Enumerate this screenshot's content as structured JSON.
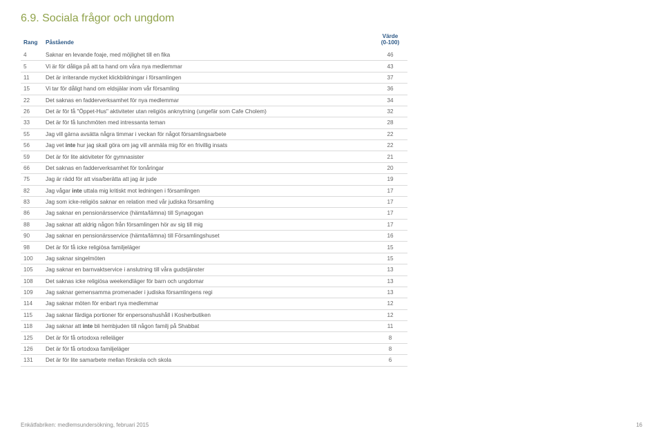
{
  "title": "6.9. Sociala frågor och ungdom",
  "columns": {
    "rang": "Rang",
    "pastaende": "Påstående",
    "varde": "Värde\n(0-100)"
  },
  "rows": [
    {
      "r": "4",
      "t": "Saknar en levande foaje, med möjlighet till en fika",
      "v": "46"
    },
    {
      "r": "5",
      "t": "Vi är för dåliga på att ta hand om våra nya medlemmar",
      "v": "43"
    },
    {
      "r": "11",
      "t": "Det är irriterande mycket klickbildningar i församlingen",
      "v": "37"
    },
    {
      "r": "15",
      "t": "Vi tar för dåligt hand om eldsjälar inom vår församling",
      "v": "36"
    },
    {
      "r": "22",
      "t": "Det saknas en fadderverksamhet för nya medlemmar",
      "v": "34"
    },
    {
      "r": "26",
      "t": "Det är för få \"Öppet-Hus\" aktiviteter utan religiös anknytning (ungefär som Cafe Cholem)",
      "v": "32"
    },
    {
      "r": "33",
      "t": "Det är för få lunchmöten med intressanta teman",
      "v": "28"
    },
    {
      "r": "55",
      "t": "Jag vill gärna avsätta några timmar i veckan för något församlingsarbete",
      "v": "22"
    },
    {
      "r": "56",
      "t": "Jag vet inte hur jag skall göra om jag vill anmäla mig för en frivillig insats",
      "inte": [
        2
      ],
      "v": "22"
    },
    {
      "r": "59",
      "t": "Det är för lite aktiviteter för gymnasister",
      "v": "21"
    },
    {
      "r": "66",
      "t": "Det saknas en fadderverksamhet för tonåringar",
      "v": "20"
    },
    {
      "r": "75",
      "t": "Jag är rädd för att visa/berätta att jag är jude",
      "v": "19"
    },
    {
      "r": "82",
      "t": "Jag vågar inte uttala mig kritiskt mot ledningen i församlingen",
      "inte": [
        2
      ],
      "v": "17"
    },
    {
      "r": "83",
      "t": "Jag som icke-religiös saknar en relation med vår judiska församling",
      "v": "17"
    },
    {
      "r": "86",
      "t": "Jag saknar en pensionärsservice (hämta/lämna) till Synagogan",
      "v": "17"
    },
    {
      "r": "88",
      "t": "Jag saknar att aldrig någon från församlingen hör av sig till mig",
      "v": "17"
    },
    {
      "r": "90",
      "t": "Jag saknar en pensionärsservice (hämta/lämna) till Församlingshuset",
      "v": "16"
    },
    {
      "r": "98",
      "t": "Det är för få icke religiösa familjeläger",
      "v": "15"
    },
    {
      "r": "100",
      "t": "Jag saknar singelmöten",
      "v": "15"
    },
    {
      "r": "105",
      "t": "Jag saknar en barnvaktservice i anslutning till våra gudstjänster",
      "v": "13"
    },
    {
      "r": "108",
      "t": "Det saknas icke religiösa weekendläger för barn och ungdomar",
      "v": "13"
    },
    {
      "r": "109",
      "t": "Jag saknar gemensamma promenader i judiska församlingens regi",
      "v": "13"
    },
    {
      "r": "114",
      "t": "Jag saknar möten för enbart nya medlemmar",
      "v": "12"
    },
    {
      "r": "115",
      "t": "Jag saknar färdiga portioner för enpersonshushåll i Kosherbutiken",
      "v": "12"
    },
    {
      "r": "118",
      "t": "Jag saknar att inte bli hembjuden till någon familj på Shabbat",
      "inte": [
        3
      ],
      "v": "11"
    },
    {
      "r": "125",
      "t": "Det är för få ortodoxa relleläger",
      "v": "8"
    },
    {
      "r": "126",
      "t": "Det är för få ortodoxa familjeläger",
      "v": "8"
    },
    {
      "r": "131",
      "t": "Det är för lite samarbete mellan förskola och skola",
      "v": "6"
    }
  ],
  "footer": {
    "left": "Enkätfabriken: medlemsundersökning, februari 2015",
    "page": "16"
  }
}
